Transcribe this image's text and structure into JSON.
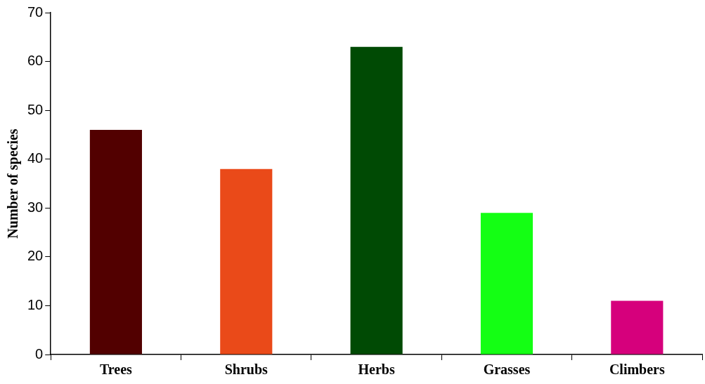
{
  "chart_data": {
    "type": "bar",
    "ylabel": "Number of species",
    "categories": [
      "Trees",
      "Shrubs",
      "Herbs",
      "Grasses",
      "Climbers"
    ],
    "values": [
      46,
      38,
      63,
      29,
      11
    ],
    "colors": [
      "#520000",
      "#ea4a19",
      "#004a04",
      "#14ff14",
      "#d6007c"
    ],
    "ylim": [
      0,
      70
    ],
    "yticks": [
      0,
      10,
      20,
      30,
      40,
      50,
      60,
      70
    ],
    "grid": false,
    "legend": false
  }
}
